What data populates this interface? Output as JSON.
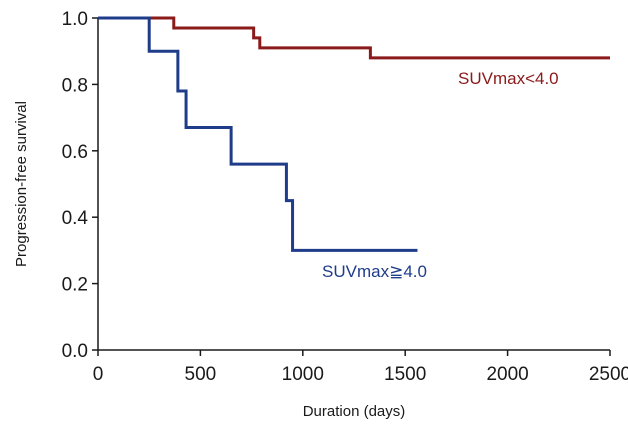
{
  "chart_data": {
    "type": "line",
    "step": true,
    "xlabel": "Duration (days)",
    "ylabel": "Progression-free survival",
    "xlim": [
      0,
      2500
    ],
    "ylim": [
      0,
      1
    ],
    "xticks": [
      "0",
      "500",
      "1000",
      "1500",
      "2000",
      "2500"
    ],
    "yticks": [
      "0.0",
      "0.2",
      "0.4",
      "0.6",
      "0.8",
      "1.0"
    ],
    "grid": false,
    "series": [
      {
        "name": "SUVmax<4.0",
        "color": "#8b1a1a",
        "x": [
          0,
          340,
          370,
          730,
          760,
          790,
          1310,
          1330,
          2500
        ],
        "y": [
          1.0,
          1.0,
          0.97,
          0.97,
          0.94,
          0.91,
          0.91,
          0.88,
          0.88
        ]
      },
      {
        "name": "SUVmax≧4.0",
        "color": "#1f3c8a",
        "x": [
          0,
          250,
          390,
          430,
          650,
          920,
          950,
          1560
        ],
        "y": [
          1.0,
          0.9,
          0.78,
          0.67,
          0.56,
          0.45,
          0.3,
          0.3
        ]
      }
    ]
  }
}
